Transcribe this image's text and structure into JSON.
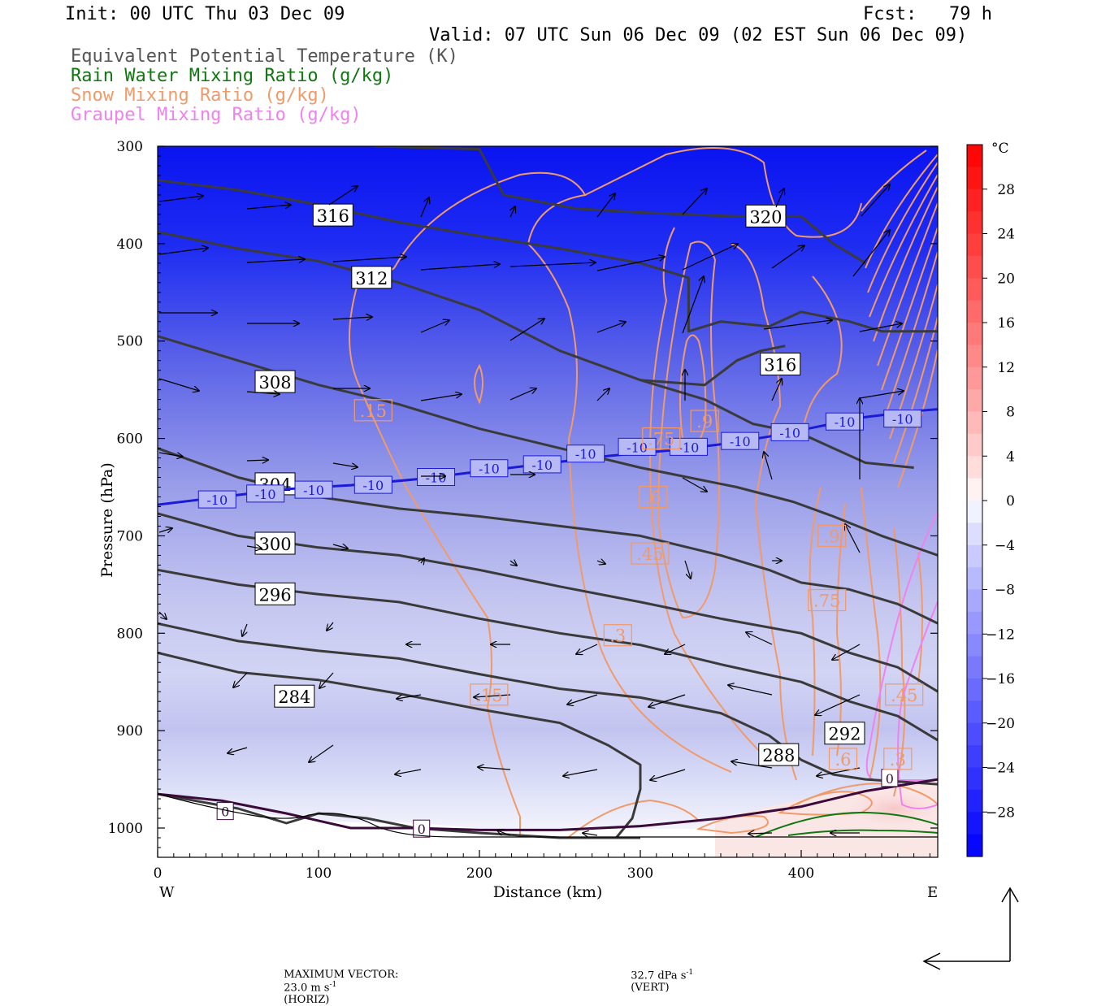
{
  "header": {
    "init": "Init: 00 UTC Thu 03 Dec 09",
    "fcst": "Fcst:   79 h",
    "valid": "Valid: 07 UTC Sun 06 Dec 09 (02 EST Sun 06 Dec 09)",
    "fields": [
      {
        "label": "Equivalent Potential Temperature (K)",
        "color": "#555555"
      },
      {
        "label": "Rain Water Mixing Ratio (g/kg)",
        "color": "#117711"
      },
      {
        "label": "Snow Mixing Ratio (g/kg)",
        "color": "#f09a6a"
      },
      {
        "label": "Graupel Mixing Ratio (g/kg)",
        "color": "#ee82ee"
      }
    ]
  },
  "chart_data": {
    "type": "cross-section",
    "xlabel": "Distance (km)",
    "ylabel": "Pressure (hPa)",
    "xlim": [
      0,
      485
    ],
    "ylim": [
      1030,
      300
    ],
    "x_ticks": [
      0,
      100,
      200,
      300,
      400
    ],
    "y_ticks": [
      300,
      400,
      500,
      600,
      700,
      800,
      900,
      1000
    ],
    "x_end_labels": {
      "left": "W",
      "right": "E"
    },
    "theta_e_contours": [
      {
        "value": "320",
        "label_at": [
          378,
          372
        ],
        "points": [
          [
            135,
            300
          ],
          [
            200,
            303
          ],
          [
            215,
            350
          ],
          [
            260,
            364
          ],
          [
            300,
            368
          ],
          [
            360,
            372
          ],
          [
            400,
            372
          ],
          [
            420,
            400
          ],
          [
            440,
            420
          ]
        ]
      },
      {
        "value": "316",
        "label_at": [
          109,
          371
        ],
        "points": [
          [
            0,
            335
          ],
          [
            50,
            345
          ],
          [
            100,
            360
          ],
          [
            150,
            378
          ],
          [
            200,
            392
          ],
          [
            250,
            405
          ],
          [
            300,
            420
          ],
          [
            330,
            435
          ],
          [
            330,
            490
          ],
          [
            350,
            480
          ],
          [
            380,
            485
          ],
          [
            400,
            470
          ],
          [
            430,
            480
          ],
          [
            450,
            490
          ],
          [
            485,
            490
          ]
        ]
      },
      {
        "value": "312",
        "label_at": [
          133,
          435
        ],
        "points": [
          [
            0,
            388
          ],
          [
            50,
            405
          ],
          [
            100,
            418
          ],
          [
            150,
            440
          ],
          [
            200,
            468
          ],
          [
            250,
            510
          ],
          [
            300,
            540
          ],
          [
            340,
            560
          ],
          [
            370,
            585
          ],
          [
            400,
            595
          ],
          [
            420,
            610
          ],
          [
            440,
            625
          ],
          [
            470,
            630
          ]
        ]
      },
      {
        "value": "316b",
        "label_at": [
          387,
          524
        ],
        "points": [
          [
            300,
            540
          ],
          [
            340,
            545
          ],
          [
            360,
            520
          ],
          [
            375,
            510
          ],
          [
            390,
            505
          ]
        ]
      },
      {
        "value": "308",
        "label_at": [
          73,
          542
        ],
        "points": [
          [
            0,
            495
          ],
          [
            50,
            520
          ],
          [
            100,
            545
          ],
          [
            150,
            565
          ],
          [
            200,
            590
          ],
          [
            250,
            610
          ],
          [
            300,
            630
          ],
          [
            330,
            640
          ],
          [
            360,
            650
          ],
          [
            395,
            665
          ],
          [
            420,
            680
          ],
          [
            450,
            700
          ],
          [
            485,
            720
          ]
        ]
      },
      {
        "value": "304",
        "label_at": [
          73,
          647
        ],
        "points": [
          [
            0,
            610
          ],
          [
            50,
            640
          ],
          [
            100,
            660
          ],
          [
            150,
            672
          ],
          [
            200,
            680
          ],
          [
            250,
            690
          ],
          [
            300,
            700
          ],
          [
            350,
            720
          ],
          [
            380,
            735
          ],
          [
            400,
            748
          ],
          [
            430,
            755
          ],
          [
            460,
            770
          ],
          [
            485,
            790
          ]
        ]
      },
      {
        "value": "300",
        "label_at": [
          73,
          708
        ],
        "points": [
          [
            0,
            677
          ],
          [
            50,
            700
          ],
          [
            100,
            712
          ],
          [
            150,
            720
          ],
          [
            200,
            735
          ],
          [
            250,
            752
          ],
          [
            300,
            768
          ],
          [
            350,
            785
          ],
          [
            400,
            800
          ],
          [
            430,
            820
          ],
          [
            460,
            835
          ],
          [
            485,
            860
          ]
        ]
      },
      {
        "value": "296",
        "label_at": [
          73,
          760
        ],
        "points": [
          [
            0,
            735
          ],
          [
            50,
            750
          ],
          [
            100,
            760
          ],
          [
            150,
            768
          ],
          [
            200,
            785
          ],
          [
            250,
            800
          ],
          [
            300,
            812
          ],
          [
            350,
            832
          ],
          [
            400,
            850
          ],
          [
            430,
            870
          ],
          [
            460,
            885
          ],
          [
            485,
            910
          ]
        ]
      },
      {
        "value": "292",
        "label_at": [
          427,
          903
        ],
        "points": [
          [
            0,
            790
          ],
          [
            50,
            808
          ],
          [
            100,
            818
          ],
          [
            150,
            826
          ],
          [
            200,
            842
          ],
          [
            250,
            857
          ],
          [
            300,
            866
          ],
          [
            350,
            882
          ],
          [
            380,
            905
          ],
          [
            400,
            930
          ],
          [
            420,
            945
          ],
          [
            440,
            950
          ],
          [
            485,
            955
          ]
        ]
      },
      {
        "value": "288",
        "label_at": [
          386,
          925
        ],
        "points": [
          [
            0,
            820
          ],
          [
            50,
            840
          ],
          [
            100,
            848
          ],
          [
            150,
            862
          ],
          [
            200,
            878
          ],
          [
            250,
            892
          ],
          [
            280,
            915
          ],
          [
            300,
            935
          ],
          [
            300,
            960
          ],
          [
            295,
            990
          ],
          [
            285,
            1010
          ]
        ]
      },
      {
        "value": "284",
        "label_at": [
          85,
          865
        ],
        "points": [
          [
            0,
            965
          ],
          [
            50,
            980
          ],
          [
            80,
            995
          ],
          [
            100,
            985
          ],
          [
            130,
            990
          ],
          [
            160,
            1000
          ],
          [
            200,
            1005
          ],
          [
            250,
            1010
          ],
          [
            300,
            1010
          ]
        ]
      }
    ],
    "isotherm_minus10": {
      "label": "-10",
      "label_positions": [
        [
          37,
          663
        ],
        [
          67,
          657
        ],
        [
          97,
          653
        ],
        [
          134,
          648
        ],
        [
          173,
          640
        ],
        [
          206,
          631
        ],
        [
          239,
          627
        ],
        [
          266,
          616
        ],
        [
          298,
          609
        ],
        [
          330,
          609
        ],
        [
          362,
          603
        ],
        [
          393,
          594
        ],
        [
          427,
          583
        ],
        [
          463,
          580
        ]
      ],
      "points": [
        [
          0,
          668
        ],
        [
          40,
          660
        ],
        [
          80,
          652
        ],
        [
          120,
          648
        ],
        [
          160,
          642
        ],
        [
          200,
          634
        ],
        [
          240,
          626
        ],
        [
          280,
          618
        ],
        [
          320,
          612
        ],
        [
          350,
          606
        ],
        [
          380,
          598
        ],
        [
          410,
          588
        ],
        [
          440,
          578
        ],
        [
          470,
          572
        ],
        [
          485,
          570
        ]
      ]
    },
    "isotherm_0": {
      "label": "0",
      "label_positions": [
        [
          42,
          983
        ],
        [
          164,
          1001
        ],
        [
          455,
          949
        ]
      ],
      "points": [
        [
          0,
          965
        ],
        [
          40,
          972
        ],
        [
          80,
          985
        ],
        [
          120,
          1000
        ],
        [
          160,
          1000
        ],
        [
          200,
          1002
        ],
        [
          250,
          1002
        ],
        [
          300,
          998
        ],
        [
          350,
          990
        ],
        [
          400,
          978
        ],
        [
          440,
          962
        ],
        [
          485,
          950
        ]
      ]
    },
    "snow_labels": [
      {
        "text": ".15",
        "at": [
          134,
          571
        ]
      },
      {
        "text": ".15",
        "at": [
          206,
          863
        ]
      },
      {
        "text": ".3",
        "at": [
          286,
          802
        ]
      },
      {
        "text": ".45",
        "at": [
          306,
          718
        ]
      },
      {
        "text": ".6",
        "at": [
          308,
          660
        ]
      },
      {
        "text": ".75",
        "at": [
          313,
          600
        ]
      },
      {
        "text": ".9",
        "at": [
          340,
          582
        ]
      },
      {
        "text": ".9",
        "at": [
          419,
          700
        ]
      },
      {
        "text": ".75",
        "at": [
          416,
          766
        ]
      },
      {
        "text": ".6",
        "at": [
          426,
          929
        ]
      },
      {
        "text": ".45",
        "at": [
          464,
          863
        ]
      },
      {
        "text": ".3",
        "at": [
          460,
          929
        ]
      }
    ],
    "colorbar": {
      "unit": "°C",
      "ticks": [
        "28",
        "24",
        "20",
        "16",
        "12",
        "8",
        "4",
        "0",
        "−4",
        "−8",
        "−12",
        "−16",
        "−20",
        "−24",
        "−28"
      ],
      "min": -32,
      "max": 32
    },
    "wind_vectors": {
      "max_horizontal": "23.0 m s",
      "max_vertical": "32.7 dPa s"
    }
  },
  "footer": {
    "label": "MAXIMUM VECTOR:",
    "horiz_value": "23.0 m s",
    "horiz_exp": "-1",
    "horiz_suffix": "(HORIZ)",
    "vert_value": "32.7 dPa s",
    "vert_exp": "-1",
    "vert_suffix": "(VERT)"
  }
}
